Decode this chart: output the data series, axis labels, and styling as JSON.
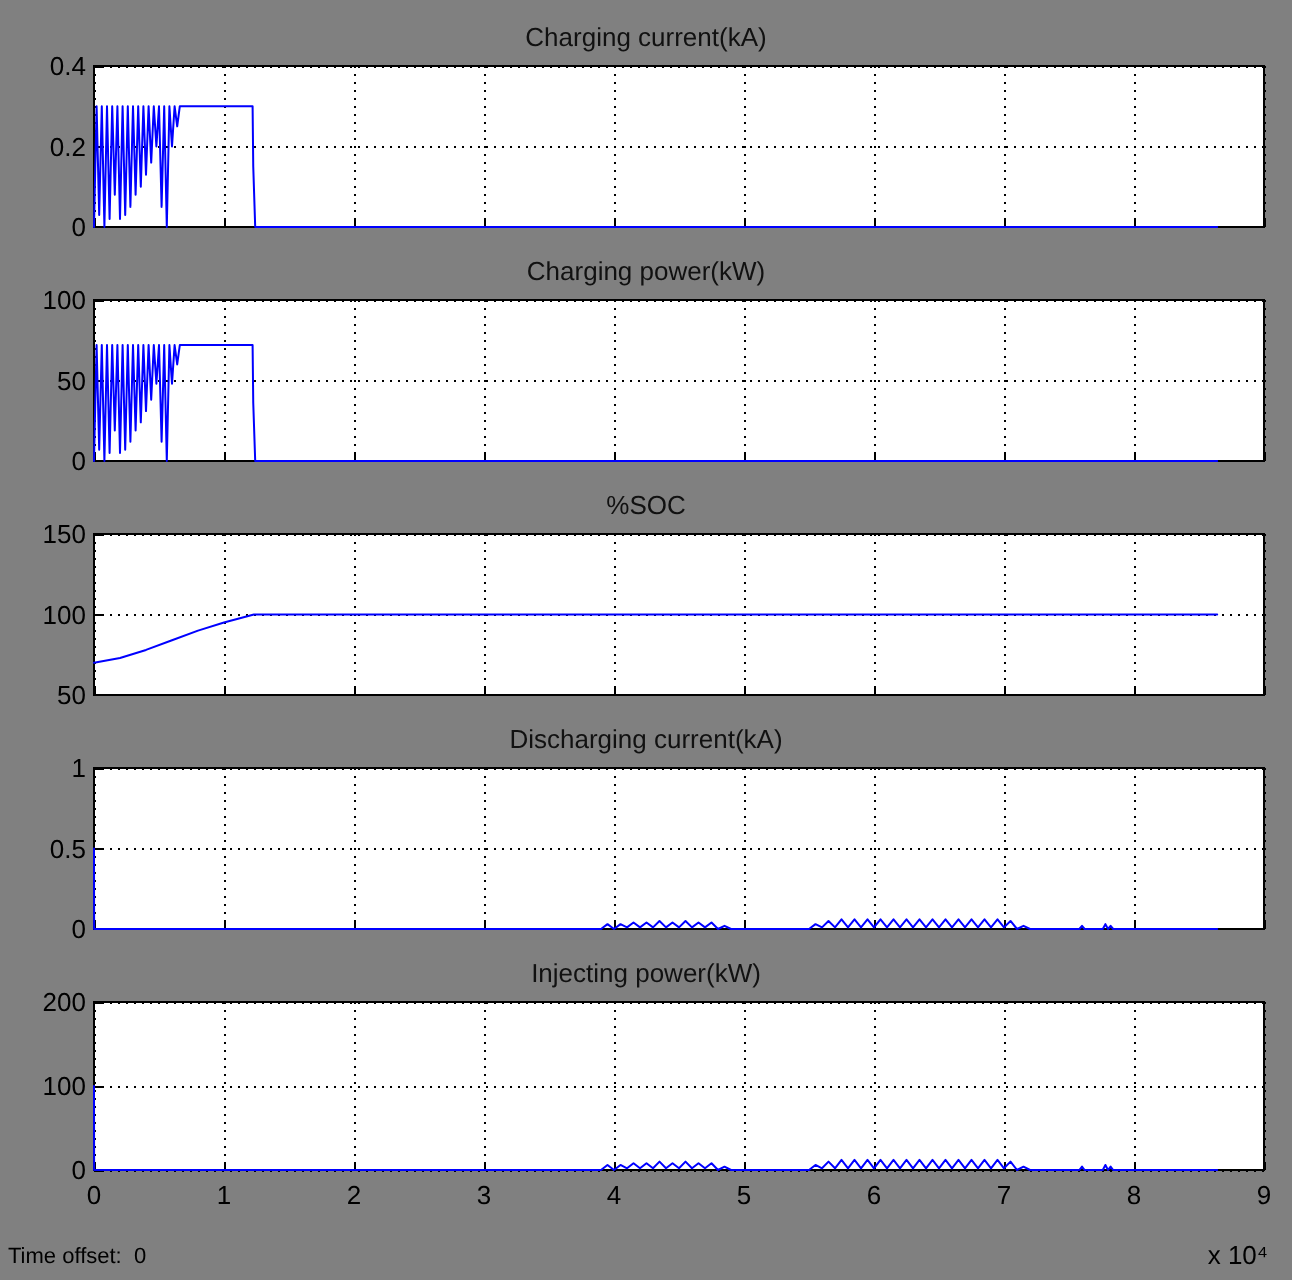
{
  "chart_data": [
    {
      "type": "line",
      "title": "Charging current(kA)",
      "x": [
        0,
        0.02,
        0.04,
        0.06,
        0.08,
        0.1,
        0.12,
        0.14,
        0.16,
        0.18,
        0.2,
        0.22,
        0.24,
        0.26,
        0.28,
        0.3,
        0.32,
        0.34,
        0.36,
        0.38,
        0.4,
        0.42,
        0.44,
        0.46,
        0.48,
        0.5,
        0.52,
        0.54,
        0.56,
        0.58,
        0.6,
        0.62,
        0.64,
        0.66,
        1.22,
        1.225,
        1.24,
        8.64
      ],
      "series": [
        {
          "color": "#0000ff",
          "values": [
            0,
            0.3,
            0.03,
            0.3,
            0,
            0.3,
            0.02,
            0.3,
            0.08,
            0.3,
            0.02,
            0.3,
            0.03,
            0.3,
            0.05,
            0.3,
            0.08,
            0.3,
            0.1,
            0.3,
            0.13,
            0.3,
            0.16,
            0.3,
            0.2,
            0.3,
            0.05,
            0.3,
            0,
            0.3,
            0.2,
            0.3,
            0.25,
            0.3,
            0.3,
            0.15,
            0,
            0
          ]
        }
      ],
      "xlim": [
        0,
        9
      ],
      "xticks": [
        0,
        1,
        2,
        3,
        4,
        5,
        6,
        7,
        8,
        9
      ],
      "ylim": [
        0,
        0.4
      ],
      "yticks": [
        0,
        0.2,
        0.4
      ],
      "grid": true,
      "tick_labels": "y"
    },
    {
      "type": "line",
      "title": "Charging power(kW)",
      "x": [
        0,
        0.02,
        0.04,
        0.06,
        0.08,
        0.1,
        0.12,
        0.14,
        0.16,
        0.18,
        0.2,
        0.22,
        0.24,
        0.26,
        0.28,
        0.3,
        0.32,
        0.34,
        0.36,
        0.38,
        0.4,
        0.42,
        0.44,
        0.46,
        0.48,
        0.5,
        0.52,
        0.54,
        0.56,
        0.58,
        0.6,
        0.62,
        0.64,
        0.66,
        1.22,
        1.225,
        1.24,
        8.64
      ],
      "series": [
        {
          "color": "#0000ff",
          "values": [
            0,
            72,
            7,
            72,
            0,
            72,
            5,
            72,
            19,
            72,
            5,
            72,
            7,
            72,
            12,
            72,
            19,
            72,
            24,
            72,
            31,
            72,
            38,
            72,
            48,
            72,
            12,
            72,
            0,
            72,
            48,
            72,
            60,
            72,
            72,
            36,
            0,
            0
          ]
        }
      ],
      "xlim": [
        0,
        9
      ],
      "xticks": [
        0,
        1,
        2,
        3,
        4,
        5,
        6,
        7,
        8,
        9
      ],
      "ylim": [
        0,
        100
      ],
      "yticks": [
        0,
        50,
        100
      ],
      "grid": true,
      "tick_labels": "y"
    },
    {
      "type": "line",
      "title": "%SOC",
      "x": [
        0,
        0.2,
        0.4,
        0.6,
        0.8,
        1,
        1.23,
        8.64
      ],
      "series": [
        {
          "color": "#0000ff",
          "values": [
            70,
            73,
            78,
            84,
            90,
            95,
            100,
            100
          ]
        }
      ],
      "xlim": [
        0,
        9
      ],
      "xticks": [
        0,
        1,
        2,
        3,
        4,
        5,
        6,
        7,
        8,
        9
      ],
      "ylim": [
        50,
        150
      ],
      "yticks": [
        50,
        100,
        150
      ],
      "grid": true,
      "tick_labels": "y"
    },
    {
      "type": "line",
      "title": "Discharging current(kA)",
      "x": [
        0,
        0.001,
        3.85,
        3.9,
        3.95,
        4,
        4.05,
        4.1,
        4.15,
        4.2,
        4.25,
        4.3,
        4.35,
        4.4,
        4.45,
        4.5,
        4.55,
        4.6,
        4.65,
        4.7,
        4.75,
        4.8,
        4.85,
        4.9,
        5.45,
        5.5,
        5.55,
        5.6,
        5.65,
        5.7,
        5.75,
        5.8,
        5.85,
        5.9,
        5.95,
        6,
        6.05,
        6.1,
        6.15,
        6.2,
        6.25,
        6.3,
        6.35,
        6.4,
        6.45,
        6.5,
        6.55,
        6.6,
        6.65,
        6.7,
        6.75,
        6.8,
        6.85,
        6.9,
        6.95,
        7,
        7.05,
        7.1,
        7.15,
        7.2,
        7.58,
        7.6,
        7.62,
        7.76,
        7.78,
        7.8,
        7.82,
        7.84,
        8.64
      ],
      "series": [
        {
          "color": "#0000ff",
          "values": [
            0.5,
            0,
            0,
            0,
            0.03,
            0,
            0.03,
            0.01,
            0.04,
            0.01,
            0.04,
            0.01,
            0.05,
            0.01,
            0.04,
            0.01,
            0.05,
            0.01,
            0.04,
            0.01,
            0.04,
            0,
            0.02,
            0,
            0,
            0,
            0.03,
            0.01,
            0.05,
            0.01,
            0.06,
            0.01,
            0.06,
            0.01,
            0.06,
            0.01,
            0.06,
            0.01,
            0.06,
            0.01,
            0.06,
            0.01,
            0.06,
            0.01,
            0.06,
            0.01,
            0.06,
            0.01,
            0.06,
            0.01,
            0.06,
            0.01,
            0.06,
            0.01,
            0.06,
            0.01,
            0.05,
            0,
            0.02,
            0,
            0,
            0.02,
            0,
            0,
            0.03,
            0,
            0.02,
            0,
            0
          ]
        }
      ],
      "xlim": [
        0,
        9
      ],
      "xticks": [
        0,
        1,
        2,
        3,
        4,
        5,
        6,
        7,
        8,
        9
      ],
      "ylim": [
        0,
        1
      ],
      "yticks": [
        0,
        0.5,
        1
      ],
      "grid": true,
      "tick_labels": "y"
    },
    {
      "type": "line",
      "title": "Injecting power(kW)",
      "x": [
        0,
        0.001,
        3.85,
        3.9,
        3.95,
        4,
        4.05,
        4.1,
        4.15,
        4.2,
        4.25,
        4.3,
        4.35,
        4.4,
        4.45,
        4.5,
        4.55,
        4.6,
        4.65,
        4.7,
        4.75,
        4.8,
        4.85,
        4.9,
        5.45,
        5.5,
        5.55,
        5.6,
        5.65,
        5.7,
        5.75,
        5.8,
        5.85,
        5.9,
        5.95,
        6,
        6.05,
        6.1,
        6.15,
        6.2,
        6.25,
        6.3,
        6.35,
        6.4,
        6.45,
        6.5,
        6.55,
        6.6,
        6.65,
        6.7,
        6.75,
        6.8,
        6.85,
        6.9,
        6.95,
        7,
        7.05,
        7.1,
        7.15,
        7.2,
        7.58,
        7.6,
        7.62,
        7.76,
        7.78,
        7.8,
        7.82,
        7.84,
        8.64
      ],
      "series": [
        {
          "color": "#0000ff",
          "values": [
            100,
            0,
            0,
            0,
            6,
            0,
            6,
            2,
            8,
            2,
            8,
            2,
            10,
            2,
            8,
            2,
            10,
            2,
            8,
            2,
            8,
            0,
            4,
            0,
            0,
            0,
            6,
            2,
            10,
            2,
            12,
            2,
            12,
            2,
            12,
            2,
            12,
            2,
            12,
            2,
            12,
            2,
            12,
            2,
            12,
            2,
            12,
            2,
            12,
            2,
            12,
            2,
            12,
            2,
            12,
            2,
            10,
            0,
            4,
            0,
            0,
            4,
            0,
            0,
            6,
            0,
            4,
            0,
            0
          ]
        }
      ],
      "xlim": [
        0,
        9
      ],
      "xticks": [
        0,
        1,
        2,
        3,
        4,
        5,
        6,
        7,
        8,
        9
      ],
      "ylim": [
        0,
        200
      ],
      "yticks": [
        0,
        100,
        200
      ],
      "grid": true,
      "annotations": [
        "Time offset:  0",
        "x 10⁴"
      ]
    }
  ]
}
